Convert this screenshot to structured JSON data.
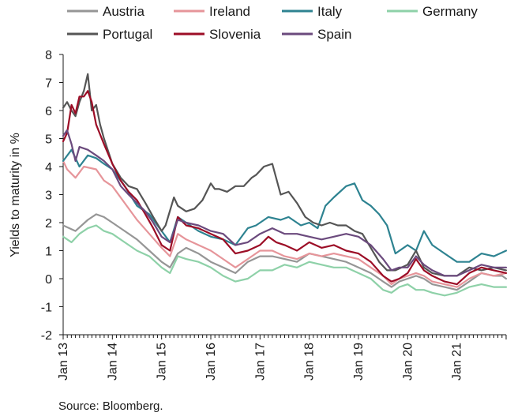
{
  "chart_data": {
    "type": "line",
    "ylabel": "Yields to maturity in %",
    "xlabel": "",
    "ylim": [
      -2,
      8
    ],
    "yticks": [
      "8",
      "7",
      "6",
      "5",
      "4",
      "3",
      "2",
      "1",
      "0",
      "-1",
      "-2"
    ],
    "xlim": [
      2013.0,
      2022.0
    ],
    "xticks": [
      "Jan 13",
      "Jan 14",
      "Jan 15",
      "Jan 16",
      "Jan 17",
      "Jan 18",
      "Jan 19",
      "Jan 20",
      "Jan 21"
    ],
    "grid": false,
    "legend": "top",
    "series": [
      {
        "name": "Austria",
        "color": "#969696",
        "x": [
          2013.0,
          2013.25,
          2013.5,
          2013.67,
          2013.83,
          2014.0,
          2014.25,
          2014.5,
          2014.75,
          2015.0,
          2015.17,
          2015.33,
          2015.5,
          2015.75,
          2016.0,
          2016.25,
          2016.5,
          2016.75,
          2017.0,
          2017.25,
          2017.5,
          2017.75,
          2018.0,
          2018.25,
          2018.5,
          2018.75,
          2019.0,
          2019.25,
          2019.5,
          2019.67,
          2019.83,
          2020.0,
          2020.17,
          2020.33,
          2020.5,
          2020.75,
          2021.0,
          2021.25,
          2021.5,
          2021.75,
          2021.92,
          2022.0
        ],
        "y": [
          1.9,
          1.7,
          2.1,
          2.3,
          2.2,
          2.0,
          1.7,
          1.4,
          1.0,
          0.6,
          0.4,
          0.9,
          1.1,
          0.9,
          0.6,
          0.4,
          0.2,
          0.6,
          0.8,
          0.8,
          0.7,
          0.6,
          0.9,
          0.8,
          0.7,
          0.6,
          0.4,
          0.2,
          -0.1,
          -0.3,
          -0.1,
          0.0,
          0.1,
          0.0,
          -0.2,
          -0.3,
          -0.4,
          -0.1,
          0.2,
          0.1,
          0.1,
          0.0
        ]
      },
      {
        "name": "Ireland",
        "color": "#e6959a",
        "x": [
          2013.0,
          2013.08,
          2013.25,
          2013.42,
          2013.67,
          2013.83,
          2014.0,
          2014.25,
          2014.5,
          2014.75,
          2015.0,
          2015.17,
          2015.33,
          2015.5,
          2015.75,
          2016.0,
          2016.25,
          2016.5,
          2016.75,
          2017.0,
          2017.25,
          2017.5,
          2017.75,
          2018.0,
          2018.25,
          2018.5,
          2018.75,
          2019.0,
          2019.25,
          2019.5,
          2019.67,
          2019.83,
          2020.0,
          2020.17,
          2020.33,
          2020.5,
          2020.75,
          2021.0,
          2021.25,
          2021.5,
          2021.75,
          2022.0
        ],
        "y": [
          4.2,
          3.9,
          3.6,
          4.0,
          3.9,
          3.5,
          3.3,
          2.7,
          2.1,
          1.6,
          1.1,
          0.8,
          1.6,
          1.4,
          1.2,
          1.0,
          0.7,
          0.4,
          0.7,
          1.0,
          1.0,
          0.8,
          0.7,
          0.9,
          0.8,
          0.9,
          0.8,
          0.7,
          0.4,
          0.1,
          -0.2,
          0.0,
          0.1,
          0.2,
          0.1,
          -0.1,
          -0.2,
          -0.3,
          0.0,
          0.2,
          0.1,
          0.2
        ]
      },
      {
        "name": "Italy",
        "color": "#2e8391",
        "x": [
          2013.0,
          2013.17,
          2013.33,
          2013.5,
          2013.67,
          2013.83,
          2014.0,
          2014.25,
          2014.5,
          2014.75,
          2015.0,
          2015.17,
          2015.33,
          2015.5,
          2015.75,
          2016.0,
          2016.25,
          2016.5,
          2016.75,
          2016.92,
          2017.17,
          2017.42,
          2017.58,
          2017.83,
          2018.0,
          2018.17,
          2018.33,
          2018.5,
          2018.75,
          2018.92,
          2019.08,
          2019.25,
          2019.42,
          2019.58,
          2019.75,
          2020.0,
          2020.17,
          2020.33,
          2020.5,
          2020.75,
          2021.0,
          2021.25,
          2021.5,
          2021.75,
          2022.0
        ],
        "y": [
          4.2,
          4.6,
          4.0,
          4.4,
          4.3,
          4.1,
          3.9,
          3.3,
          2.6,
          2.3,
          1.7,
          1.3,
          2.2,
          2.0,
          1.7,
          1.5,
          1.4,
          1.2,
          1.8,
          1.9,
          2.2,
          2.1,
          2.2,
          1.9,
          2.0,
          1.8,
          2.6,
          2.9,
          3.3,
          3.4,
          2.8,
          2.6,
          2.3,
          1.9,
          0.9,
          1.2,
          1.0,
          1.7,
          1.2,
          0.9,
          0.6,
          0.6,
          0.9,
          0.8,
          1.0
        ]
      },
      {
        "name": "Germany",
        "color": "#8ed1a8",
        "x": [
          2013.0,
          2013.17,
          2013.33,
          2013.5,
          2013.67,
          2013.83,
          2014.0,
          2014.25,
          2014.5,
          2014.75,
          2015.0,
          2015.17,
          2015.33,
          2015.5,
          2015.75,
          2016.0,
          2016.25,
          2016.5,
          2016.75,
          2017.0,
          2017.25,
          2017.5,
          2017.75,
          2018.0,
          2018.25,
          2018.5,
          2018.75,
          2019.0,
          2019.25,
          2019.5,
          2019.67,
          2019.83,
          2020.0,
          2020.17,
          2020.33,
          2020.5,
          2020.75,
          2021.0,
          2021.25,
          2021.5,
          2021.75,
          2022.0
        ],
        "y": [
          1.5,
          1.3,
          1.6,
          1.8,
          1.9,
          1.7,
          1.6,
          1.3,
          1.0,
          0.8,
          0.4,
          0.2,
          0.8,
          0.7,
          0.6,
          0.4,
          0.1,
          -0.1,
          0.0,
          0.3,
          0.3,
          0.5,
          0.4,
          0.6,
          0.5,
          0.4,
          0.4,
          0.2,
          0.0,
          -0.4,
          -0.5,
          -0.3,
          -0.2,
          -0.4,
          -0.4,
          -0.5,
          -0.6,
          -0.5,
          -0.3,
          -0.2,
          -0.3,
          -0.3
        ]
      },
      {
        "name": "Portugal",
        "color": "#555555",
        "x": [
          2013.0,
          2013.08,
          2013.17,
          2013.25,
          2013.33,
          2013.42,
          2013.5,
          2013.58,
          2013.67,
          2013.75,
          2013.83,
          2014.0,
          2014.17,
          2014.33,
          2014.5,
          2014.67,
          2014.83,
          2015.0,
          2015.08,
          2015.25,
          2015.33,
          2015.5,
          2015.67,
          2015.83,
          2016.0,
          2016.08,
          2016.17,
          2016.33,
          2016.5,
          2016.67,
          2016.83,
          2016.92,
          2017.08,
          2017.25,
          2017.42,
          2017.58,
          2017.75,
          2017.92,
          2018.08,
          2018.25,
          2018.42,
          2018.58,
          2018.75,
          2018.92,
          2019.08,
          2019.25,
          2019.42,
          2019.58,
          2019.75,
          2020.0,
          2020.17,
          2020.33,
          2020.5,
          2020.75,
          2021.0,
          2021.25,
          2021.5,
          2021.75,
          2022.0
        ],
        "y": [
          6.1,
          6.3,
          6.0,
          5.8,
          6.3,
          6.7,
          7.3,
          6.0,
          6.2,
          5.5,
          5.0,
          4.1,
          3.6,
          3.3,
          3.2,
          2.7,
          2.2,
          1.7,
          1.9,
          2.9,
          2.6,
          2.4,
          2.5,
          2.8,
          3.4,
          3.2,
          3.2,
          3.1,
          3.3,
          3.3,
          3.6,
          3.7,
          4.0,
          4.1,
          3.0,
          3.1,
          2.7,
          2.2,
          2.0,
          1.9,
          2.0,
          1.9,
          1.9,
          1.7,
          1.6,
          1.1,
          0.6,
          0.3,
          0.3,
          0.5,
          1.0,
          0.4,
          0.2,
          0.1,
          0.1,
          0.4,
          0.3,
          0.4,
          0.3
        ]
      },
      {
        "name": "Slovenia",
        "color": "#9c0d26",
        "x": [
          2013.0,
          2013.08,
          2013.17,
          2013.25,
          2013.33,
          2013.42,
          2013.5,
          2013.58,
          2013.67,
          2013.83,
          2014.0,
          2014.17,
          2014.33,
          2014.5,
          2014.67,
          2014.83,
          2015.0,
          2015.17,
          2015.33,
          2015.5,
          2015.75,
          2016.0,
          2016.25,
          2016.5,
          2016.75,
          2017.0,
          2017.17,
          2017.33,
          2017.5,
          2017.75,
          2018.0,
          2018.25,
          2018.5,
          2018.75,
          2019.0,
          2019.25,
          2019.5,
          2019.67,
          2019.83,
          2020.0,
          2020.17,
          2020.33,
          2020.5,
          2020.75,
          2021.0,
          2021.25,
          2021.5,
          2021.75,
          2022.0
        ],
        "y": [
          4.9,
          5.2,
          6.2,
          5.9,
          6.5,
          6.5,
          6.7,
          6.3,
          5.5,
          4.8,
          4.1,
          3.5,
          3.1,
          2.8,
          2.3,
          1.8,
          1.2,
          1.0,
          2.2,
          1.9,
          1.8,
          1.6,
          1.4,
          0.9,
          1.0,
          1.2,
          1.5,
          1.3,
          1.2,
          1.0,
          1.3,
          1.1,
          1.2,
          1.0,
          0.9,
          0.6,
          0.1,
          -0.1,
          0.0,
          0.2,
          0.7,
          0.3,
          0.1,
          -0.1,
          -0.2,
          0.2,
          0.4,
          0.3,
          0.2
        ]
      },
      {
        "name": "Spain",
        "color": "#6b4a7d",
        "x": [
          2013.0,
          2013.08,
          2013.17,
          2013.25,
          2013.33,
          2013.5,
          2013.67,
          2013.83,
          2014.0,
          2014.17,
          2014.33,
          2014.5,
          2014.67,
          2014.83,
          2015.0,
          2015.17,
          2015.33,
          2015.5,
          2015.75,
          2016.0,
          2016.25,
          2016.5,
          2016.75,
          2017.0,
          2017.25,
          2017.5,
          2017.75,
          2018.0,
          2018.25,
          2018.5,
          2018.75,
          2019.0,
          2019.25,
          2019.5,
          2019.67,
          2019.83,
          2020.0,
          2020.17,
          2020.33,
          2020.5,
          2020.75,
          2021.0,
          2021.25,
          2021.5,
          2021.75,
          2022.0
        ],
        "y": [
          5.1,
          5.3,
          4.8,
          4.2,
          4.7,
          4.6,
          4.4,
          4.2,
          3.9,
          3.3,
          3.0,
          2.7,
          2.4,
          2.0,
          1.5,
          1.3,
          2.1,
          2.0,
          1.9,
          1.7,
          1.6,
          1.2,
          1.3,
          1.6,
          1.8,
          1.6,
          1.6,
          1.5,
          1.4,
          1.5,
          1.6,
          1.5,
          1.2,
          0.7,
          0.3,
          0.4,
          0.4,
          0.8,
          0.5,
          0.3,
          0.1,
          0.1,
          0.3,
          0.5,
          0.4,
          0.4
        ]
      }
    ]
  },
  "source": "Source: Bloomberg."
}
